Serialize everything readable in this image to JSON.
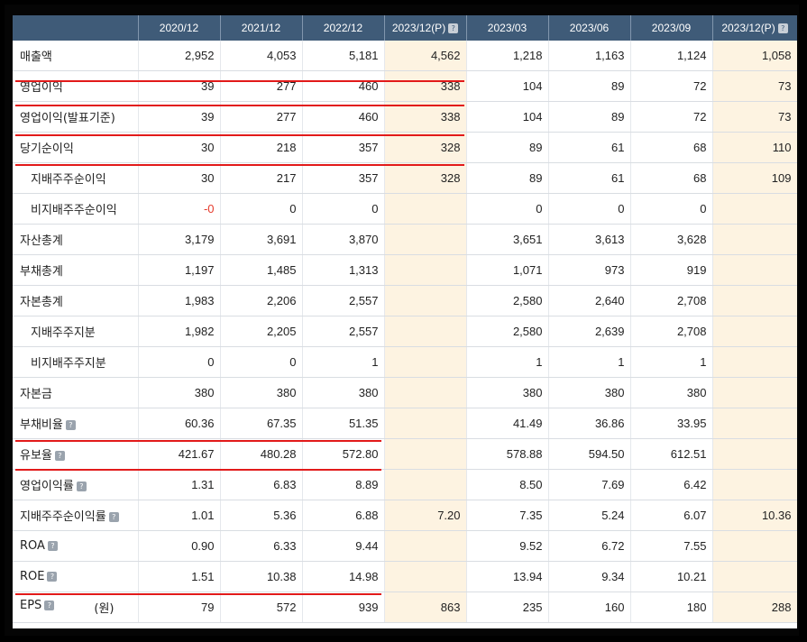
{
  "columns": [
    "2020/12",
    "2021/12",
    "2022/12",
    "2023/12(P)",
    "2023/03",
    "2023/06",
    "2023/09",
    "2023/12(P)"
  ],
  "rows": [
    {
      "label": "매출액",
      "help": false,
      "unit": "",
      "values": [
        "2,952",
        "4,053",
        "5,181",
        "4,562",
        "1,218",
        "1,163",
        "1,124",
        "1,058"
      ]
    },
    {
      "label": "영업이익",
      "help": false,
      "unit": "",
      "values": [
        "39",
        "277",
        "460",
        "338",
        "104",
        "89",
        "72",
        "73"
      ]
    },
    {
      "label": "영업이익(발표기준)",
      "help": false,
      "unit": "",
      "values": [
        "39",
        "277",
        "460",
        "338",
        "104",
        "89",
        "72",
        "73"
      ]
    },
    {
      "label": "당기순이익",
      "help": false,
      "unit": "",
      "values": [
        "30",
        "218",
        "357",
        "328",
        "89",
        "61",
        "68",
        "110"
      ]
    },
    {
      "label": "지배주주순이익",
      "help": false,
      "unit": "",
      "sub": true,
      "values": [
        "30",
        "217",
        "357",
        "328",
        "89",
        "61",
        "68",
        "109"
      ]
    },
    {
      "label": "비지배주주순이익",
      "help": false,
      "unit": "",
      "sub": true,
      "values": [
        "-0",
        "0",
        "0",
        "",
        "0",
        "0",
        "0",
        ""
      ]
    },
    {
      "label": "자산총계",
      "help": false,
      "unit": "",
      "values": [
        "3,179",
        "3,691",
        "3,870",
        "",
        "3,651",
        "3,613",
        "3,628",
        ""
      ]
    },
    {
      "label": "부채총계",
      "help": false,
      "unit": "",
      "values": [
        "1,197",
        "1,485",
        "1,313",
        "",
        "1,071",
        "973",
        "919",
        ""
      ]
    },
    {
      "label": "자본총계",
      "help": false,
      "unit": "",
      "values": [
        "1,983",
        "2,206",
        "2,557",
        "",
        "2,580",
        "2,640",
        "2,708",
        ""
      ]
    },
    {
      "label": "지배주주지분",
      "help": false,
      "unit": "",
      "sub": true,
      "values": [
        "1,982",
        "2,205",
        "2,557",
        "",
        "2,580",
        "2,639",
        "2,708",
        ""
      ]
    },
    {
      "label": "비지배주주지분",
      "help": false,
      "unit": "",
      "sub": true,
      "values": [
        "0",
        "0",
        "1",
        "",
        "1",
        "1",
        "1",
        ""
      ]
    },
    {
      "label": "자본금",
      "help": false,
      "unit": "",
      "values": [
        "380",
        "380",
        "380",
        "",
        "380",
        "380",
        "380",
        ""
      ]
    },
    {
      "label": "부채비율",
      "help": true,
      "unit": "",
      "values": [
        "60.36",
        "67.35",
        "51.35",
        "",
        "41.49",
        "36.86",
        "33.95",
        ""
      ]
    },
    {
      "label": "유보율",
      "help": true,
      "unit": "",
      "values": [
        "421.67",
        "480.28",
        "572.80",
        "",
        "578.88",
        "594.50",
        "612.51",
        ""
      ]
    },
    {
      "label": "영업이익률",
      "help": true,
      "unit": "",
      "values": [
        "1.31",
        "6.83",
        "8.89",
        "",
        "8.50",
        "7.69",
        "6.42",
        ""
      ]
    },
    {
      "label": "지배주주순이익률",
      "help": true,
      "unit": "",
      "values": [
        "1.01",
        "5.36",
        "6.88",
        "7.20",
        "7.35",
        "5.24",
        "6.07",
        "10.36"
      ]
    },
    {
      "label": "ROA",
      "help": true,
      "unit": "",
      "values": [
        "0.90",
        "6.33",
        "9.44",
        "",
        "9.52",
        "6.72",
        "7.55",
        ""
      ]
    },
    {
      "label": "ROE",
      "help": true,
      "unit": "",
      "values": [
        "1.51",
        "10.38",
        "14.98",
        "",
        "13.94",
        "9.34",
        "10.21",
        ""
      ]
    },
    {
      "label": "EPS",
      "help": true,
      "unit": "(원)",
      "values": [
        "79",
        "572",
        "939",
        "863",
        "235",
        "160",
        "180",
        "288"
      ]
    }
  ],
  "highlight_columns": [
    3,
    7
  ],
  "help_icon_glyph": "?",
  "colors": {
    "header_bg": "#3f5b78",
    "highlight_bg": "#fdf3e1",
    "negative": "#e53b2c",
    "annotation_line": "#e21a1a"
  }
}
